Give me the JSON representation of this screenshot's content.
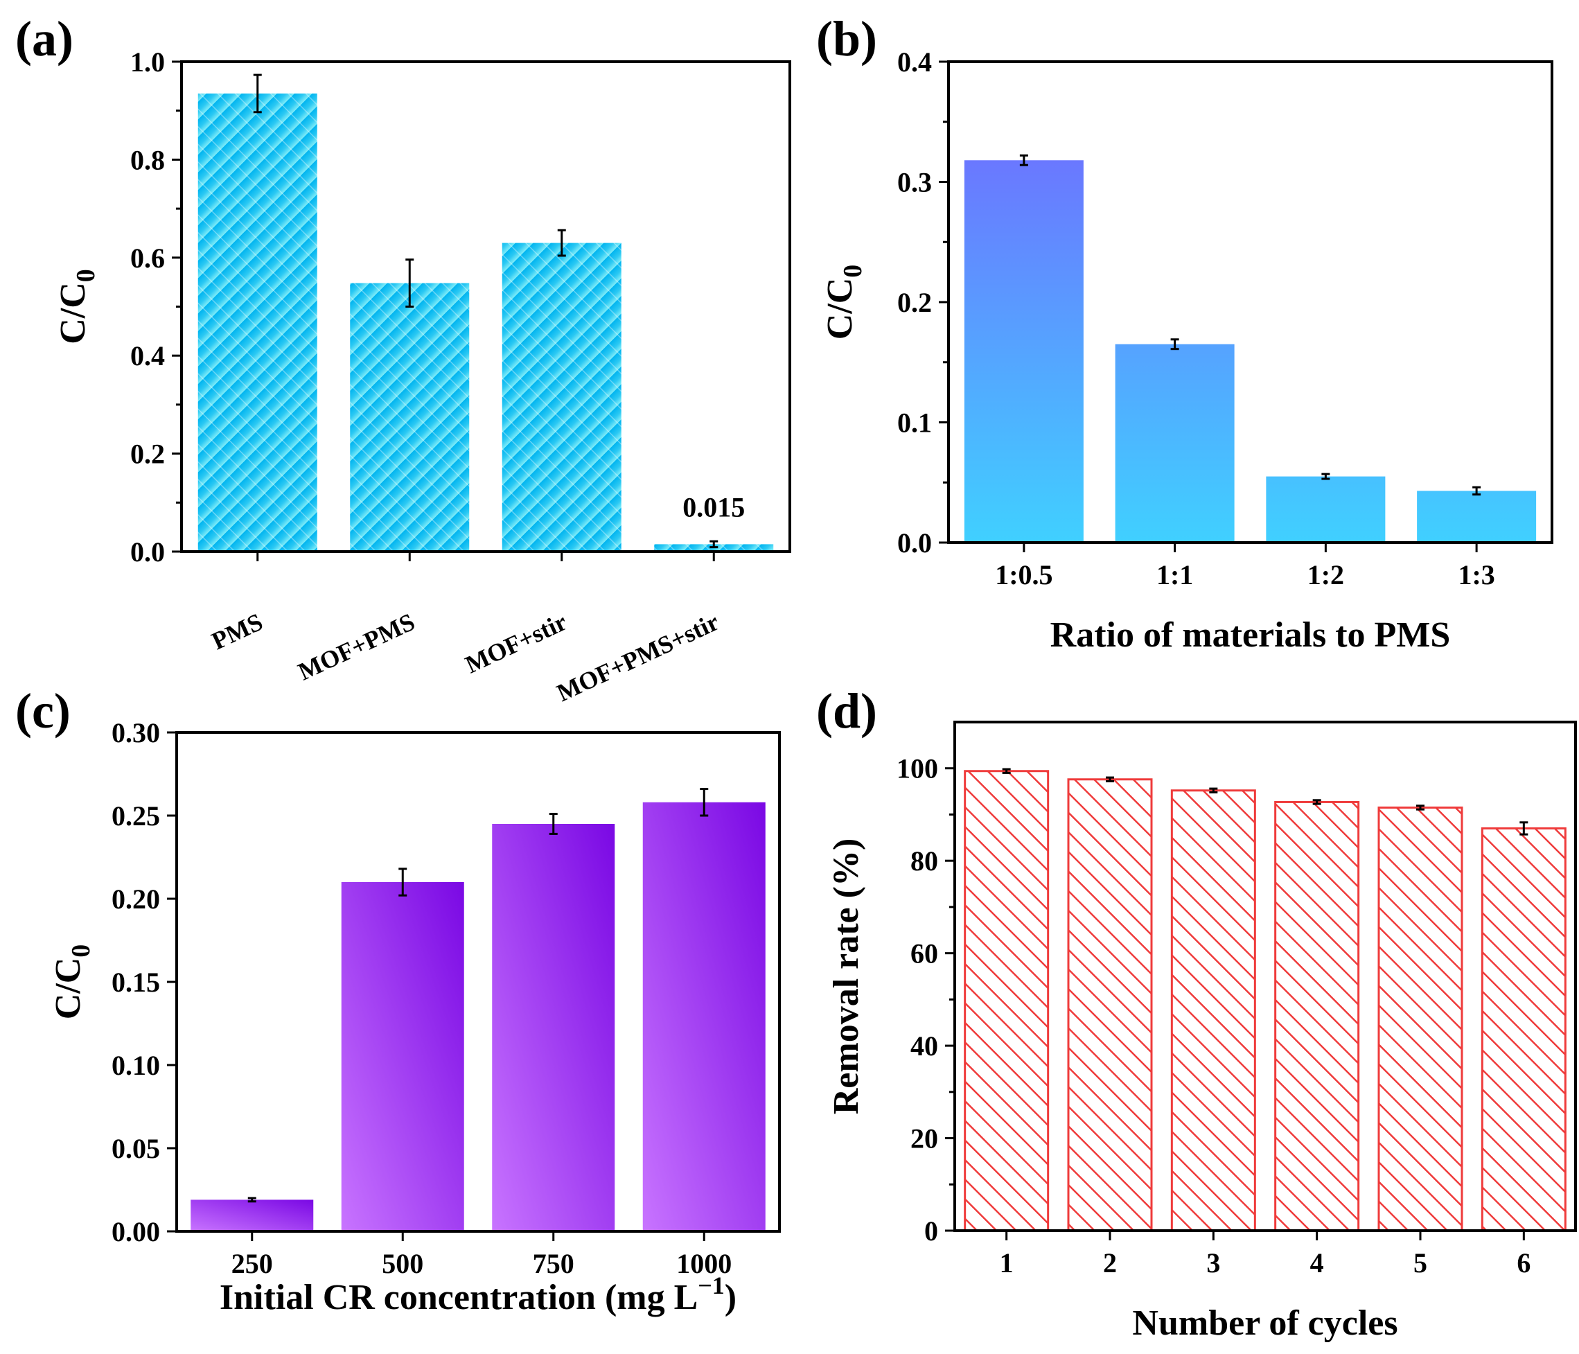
{
  "figure": {
    "panel_labels": [
      "(a)",
      "(b)",
      "(c)",
      "(d)"
    ]
  },
  "colors": {
    "a_top": "#00b4f0",
    "a_bottom": "#7aeaf8",
    "b_top": "#6b7bff",
    "b_bottom": "#3fcfff",
    "c_light": "#c572ff",
    "c_dark": "#7b0ae6",
    "d_hatch": "#ef3b3b"
  },
  "chart_data": [
    {
      "id": "a",
      "type": "bar",
      "title": "",
      "categories": [
        "PMS",
        "MOF+PMS",
        "MOF+stir",
        "MOF+PMS+stir"
      ],
      "values": [
        0.935,
        0.548,
        0.63,
        0.015
      ],
      "errors": [
        0.038,
        0.048,
        0.026,
        0.006
      ],
      "annotation": {
        "text": "0.015",
        "category": "MOF+PMS+stir"
      },
      "xlabel": "",
      "ylabel": "C/C",
      "ylabel_sub": "0",
      "ylim": [
        0,
        1.0
      ],
      "yticks": [
        0.0,
        0.2,
        0.4,
        0.6,
        0.8,
        1.0
      ],
      "ytick_labels": [
        "0.0",
        "0.2",
        "0.4",
        "0.6",
        "0.8",
        "1.0"
      ]
    },
    {
      "id": "b",
      "type": "bar",
      "title": "",
      "categories": [
        "1:0.5",
        "1:1",
        "1:2",
        "1:3"
      ],
      "values": [
        0.318,
        0.165,
        0.055,
        0.043
      ],
      "errors": [
        0.004,
        0.004,
        0.002,
        0.003
      ],
      "xlabel": "Ratio of materials to PMS",
      "ylabel": "C/C",
      "ylabel_sub": "0",
      "ylim": [
        0,
        0.4
      ],
      "yticks": [
        0.0,
        0.1,
        0.2,
        0.3,
        0.4
      ],
      "ytick_labels": [
        "0.0",
        "0.1",
        "0.2",
        "0.3",
        "0.4"
      ]
    },
    {
      "id": "c",
      "type": "bar",
      "title": "",
      "categories": [
        "250",
        "500",
        "750",
        "1000"
      ],
      "values": [
        0.019,
        0.21,
        0.245,
        0.258
      ],
      "errors": [
        0.001,
        0.008,
        0.006,
        0.008
      ],
      "xlabel": "Initial CR concentration (mg L",
      "xlabel_sup": "−1",
      "xlabel_end": ")",
      "ylabel": "C/C",
      "ylabel_sub": "0",
      "ylim": [
        0,
        0.3
      ],
      "yticks": [
        0.0,
        0.05,
        0.1,
        0.15,
        0.2,
        0.25,
        0.3
      ],
      "ytick_labels": [
        "0.00",
        "0.05",
        "0.10",
        "0.15",
        "0.20",
        "0.25",
        "0.30"
      ]
    },
    {
      "id": "d",
      "type": "bar",
      "title": "",
      "categories": [
        "1",
        "2",
        "3",
        "4",
        "5",
        "6"
      ],
      "values": [
        99.4,
        97.6,
        95.2,
        92.7,
        91.5,
        87.0
      ],
      "errors": [
        0.4,
        0.4,
        0.4,
        0.4,
        0.4,
        1.3
      ],
      "xlabel": "Number of cycles",
      "ylabel": "Removal rate (%)",
      "ylim": [
        0,
        110
      ],
      "yticks": [
        0,
        20,
        40,
        60,
        80,
        100
      ],
      "ytick_labels": [
        "0",
        "20",
        "40",
        "60",
        "80",
        "100"
      ]
    }
  ]
}
